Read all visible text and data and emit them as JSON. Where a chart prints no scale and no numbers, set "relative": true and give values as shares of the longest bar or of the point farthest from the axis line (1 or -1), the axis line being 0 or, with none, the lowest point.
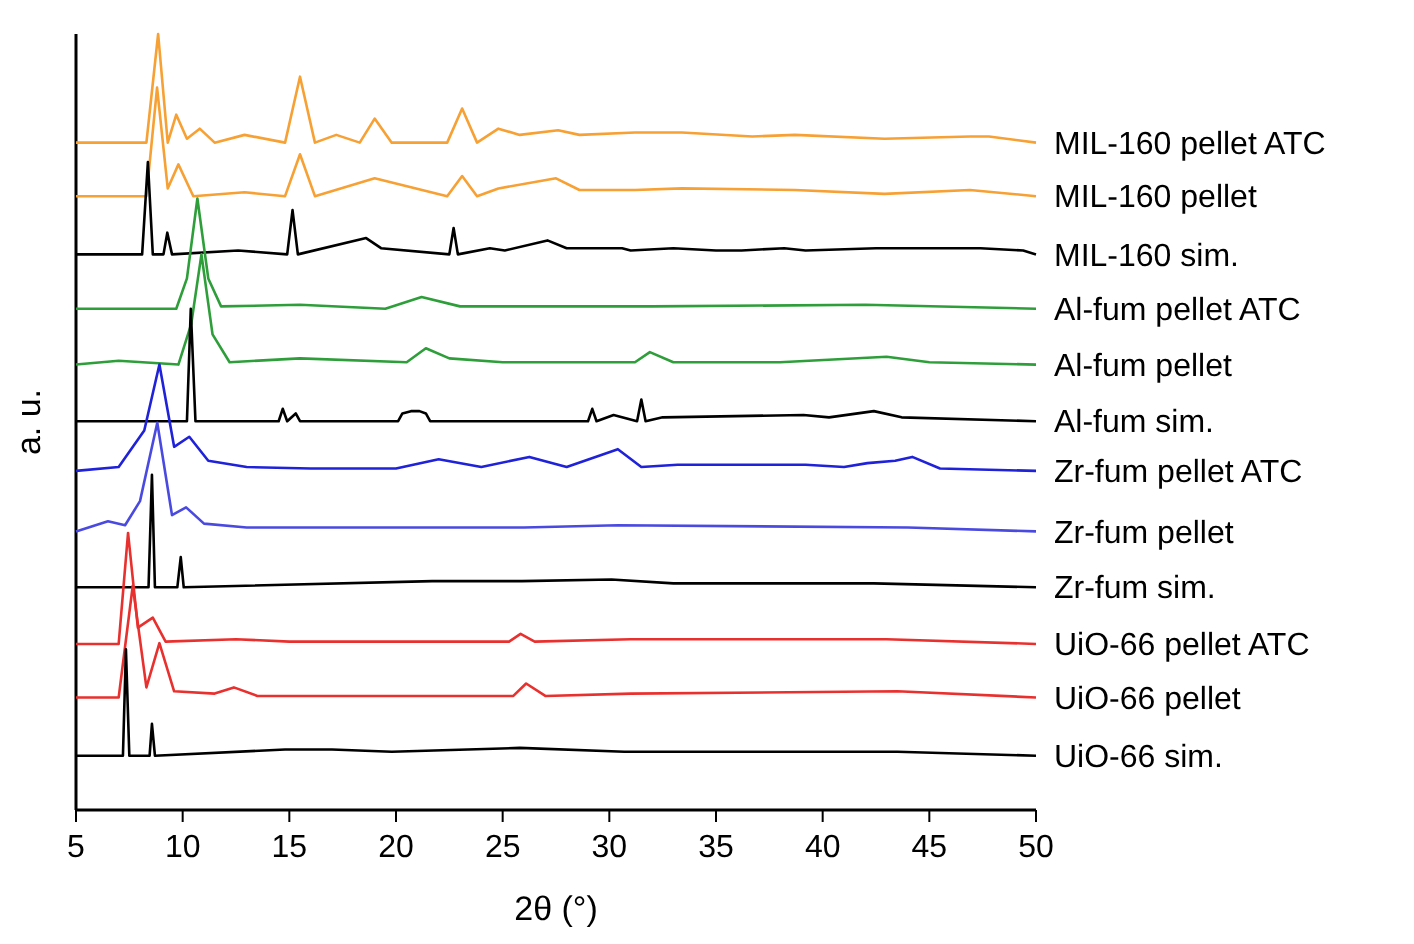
{
  "chart_data": {
    "type": "line",
    "relative": true,
    "xlabel": "2θ (°)",
    "ylabel": "a. u.",
    "xlim": [
      5,
      50
    ],
    "xticks": [
      5,
      10,
      15,
      20,
      25,
      30,
      35,
      40,
      45,
      50
    ],
    "marker": "none",
    "line_style": "solid",
    "grid": false,
    "legend": false,
    "series": [
      {
        "name": "MIL-160 pellet ATC",
        "color": "#f7a034",
        "x": [
          5,
          8.3,
          8.85,
          9.3,
          9.7,
          10.2,
          10.8,
          11.5,
          12.9,
          14.8,
          15.5,
          16.2,
          17.2,
          18.3,
          19.0,
          19.8,
          22.4,
          23.1,
          23.8,
          24.8,
          25.8,
          27.6,
          28.6,
          31.2,
          33.4,
          36.7,
          38.7,
          42.9,
          46.9,
          47.8,
          50
        ],
        "values": [
          0.86,
          0.86,
          1.0,
          0.86,
          0.896,
          0.865,
          0.878,
          0.86,
          0.87,
          0.86,
          0.945,
          0.86,
          0.87,
          0.86,
          0.891,
          0.86,
          0.86,
          0.904,
          0.86,
          0.878,
          0.87,
          0.876,
          0.87,
          0.873,
          0.873,
          0.868,
          0.87,
          0.865,
          0.868,
          0.868,
          0.86
        ]
      },
      {
        "name": "MIL-160 pellet",
        "color": "#f7a034",
        "x": [
          5,
          8.3,
          8.8,
          9.3,
          9.8,
          10.5,
          12.9,
          14.8,
          15.5,
          16.2,
          19.0,
          22.4,
          23.1,
          23.8,
          24.8,
          27.5,
          28.6,
          31.2,
          33.4,
          38.7,
          42.9,
          46.9,
          50
        ],
        "values": [
          0.791,
          0.791,
          0.931,
          0.801,
          0.832,
          0.791,
          0.796,
          0.791,
          0.845,
          0.791,
          0.814,
          0.791,
          0.817,
          0.791,
          0.801,
          0.814,
          0.799,
          0.799,
          0.801,
          0.799,
          0.794,
          0.799,
          0.791
        ]
      },
      {
        "name": "MIL-160 sim.",
        "color": "#000000",
        "x": [
          5,
          8.1,
          8.37,
          8.6,
          9.1,
          9.28,
          9.5,
          12.6,
          14.9,
          15.15,
          15.4,
          18.6,
          19.3,
          22.5,
          22.7,
          22.9,
          24.4,
          25.1,
          27.1,
          28.0,
          30.6,
          31.0,
          33.0,
          35.0,
          36.2,
          38.2,
          39.2,
          42.5,
          46.6,
          47.4,
          49.4,
          50
        ],
        "values": [
          0.716,
          0.716,
          0.835,
          0.716,
          0.716,
          0.744,
          0.716,
          0.721,
          0.716,
          0.773,
          0.716,
          0.737,
          0.724,
          0.716,
          0.75,
          0.716,
          0.724,
          0.721,
          0.734,
          0.724,
          0.724,
          0.721,
          0.724,
          0.721,
          0.721,
          0.724,
          0.721,
          0.724,
          0.724,
          0.724,
          0.721,
          0.716
        ]
      },
      {
        "name": "Al-fum pellet ATC",
        "color": "#2e9e3a",
        "x": [
          5,
          9.7,
          10.2,
          10.69,
          11.2,
          11.8,
          15.5,
          19.5,
          21.2,
          23,
          32,
          42,
          50
        ],
        "values": [
          0.646,
          0.646,
          0.685,
          0.788,
          0.685,
          0.649,
          0.651,
          0.646,
          0.661,
          0.649,
          0.649,
          0.651,
          0.646
        ]
      },
      {
        "name": "Al-fum pellet",
        "color": "#2e9e3a",
        "x": [
          5,
          7,
          9.8,
          10.4,
          10.88,
          11.4,
          12.2,
          15.5,
          20.5,
          21.4,
          22.5,
          25,
          31.2,
          31.9,
          33,
          38,
          43,
          45,
          50
        ],
        "values": [
          0.574,
          0.579,
          0.574,
          0.626,
          0.716,
          0.613,
          0.577,
          0.582,
          0.577,
          0.595,
          0.582,
          0.577,
          0.577,
          0.59,
          0.577,
          0.577,
          0.584,
          0.577,
          0.574
        ]
      },
      {
        "name": "Al-fum sim.",
        "color": "#000000",
        "x": [
          5,
          10.2,
          10.38,
          10.6,
          14.5,
          14.69,
          14.9,
          15.3,
          15.5,
          20.1,
          20.3,
          20.7,
          21.1,
          21.4,
          21.6,
          29.0,
          29.2,
          29.4,
          30.2,
          31.3,
          31.5,
          31.7,
          32.5,
          39.1,
          40.3,
          42.4,
          43.7,
          50
        ],
        "values": [
          0.501,
          0.501,
          0.646,
          0.501,
          0.501,
          0.517,
          0.501,
          0.511,
          0.501,
          0.501,
          0.511,
          0.514,
          0.514,
          0.511,
          0.501,
          0.501,
          0.517,
          0.501,
          0.509,
          0.501,
          0.529,
          0.501,
          0.506,
          0.509,
          0.506,
          0.514,
          0.506,
          0.501
        ]
      },
      {
        "name": "Zr-fum pellet ATC",
        "color": "#1f22d8",
        "x": [
          5,
          7,
          8.2,
          8.91,
          9.6,
          10.31,
          11.2,
          13,
          16,
          20,
          22.0,
          24,
          26.25,
          28,
          30.4,
          31.5,
          33.2,
          36,
          39.2,
          41,
          42.1,
          43.4,
          44.2,
          45.5,
          50
        ],
        "values": [
          0.437,
          0.442,
          0.489,
          0.574,
          0.468,
          0.481,
          0.45,
          0.442,
          0.44,
          0.44,
          0.452,
          0.442,
          0.455,
          0.442,
          0.465,
          0.442,
          0.445,
          0.445,
          0.445,
          0.442,
          0.447,
          0.45,
          0.455,
          0.44,
          0.437
        ]
      },
      {
        "name": "Zr-fum pellet",
        "color": "#4a4ae0",
        "x": [
          5,
          6.5,
          7.3,
          8.0,
          8.81,
          9.5,
          10.16,
          11.0,
          13,
          22,
          26,
          30.4,
          44,
          50
        ],
        "values": [
          0.359,
          0.372,
          0.367,
          0.398,
          0.499,
          0.38,
          0.39,
          0.369,
          0.364,
          0.364,
          0.364,
          0.367,
          0.364,
          0.359
        ]
      },
      {
        "name": "Zr-fum sim.",
        "color": "#000000",
        "x": [
          5,
          8.4,
          8.56,
          8.7,
          9.75,
          9.91,
          10.05,
          21.7,
          25.9,
          30.1,
          33,
          42.4,
          50
        ],
        "values": [
          0.287,
          0.287,
          0.432,
          0.287,
          0.287,
          0.326,
          0.287,
          0.295,
          0.295,
          0.297,
          0.292,
          0.292,
          0.287
        ]
      },
      {
        "name": "UiO-66 pellet ATC",
        "color": "#e8312f",
        "x": [
          5,
          7.0,
          7.44,
          7.9,
          8.6,
          9.2,
          12.5,
          15,
          25.3,
          25.84,
          26.5,
          31,
          43,
          50
        ],
        "values": [
          0.214,
          0.214,
          0.357,
          0.235,
          0.248,
          0.217,
          0.22,
          0.217,
          0.217,
          0.227,
          0.217,
          0.22,
          0.22,
          0.214
        ]
      },
      {
        "name": "UiO-66 pellet",
        "color": "#e8312f",
        "x": [
          5,
          7.0,
          7.66,
          8.3,
          8.91,
          9.6,
          11.5,
          12.4,
          13.5,
          25.5,
          26.1,
          27,
          31,
          43.5,
          50
        ],
        "values": [
          0.145,
          0.145,
          0.289,
          0.158,
          0.215,
          0.153,
          0.15,
          0.158,
          0.147,
          0.147,
          0.163,
          0.147,
          0.15,
          0.153,
          0.145
        ]
      },
      {
        "name": "UiO-66 sim.",
        "color": "#000000",
        "x": [
          5,
          7.2,
          7.34,
          7.5,
          8.45,
          8.56,
          8.7,
          14.8,
          17.0,
          19.8,
          25.8,
          30.7,
          33,
          43.5,
          50
        ],
        "values": [
          0.07,
          0.07,
          0.207,
          0.07,
          0.07,
          0.111,
          0.07,
          0.078,
          0.078,
          0.075,
          0.08,
          0.075,
          0.075,
          0.075,
          0.07
        ]
      }
    ]
  }
}
